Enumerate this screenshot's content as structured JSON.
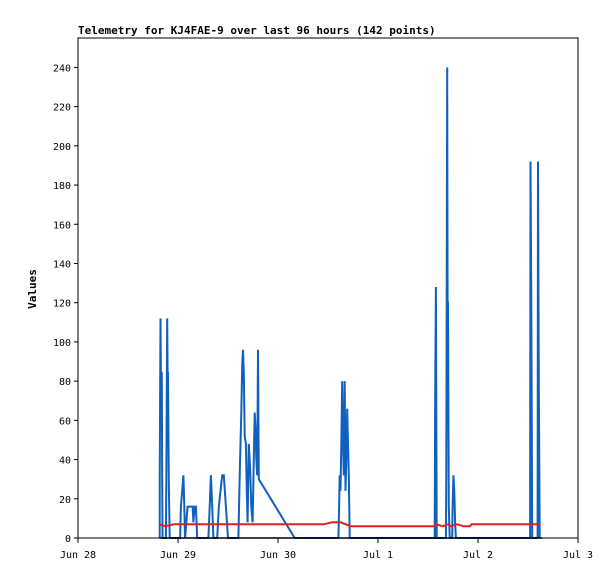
{
  "chart_data": {
    "type": "line",
    "title": "Telemetry for KJ4FAE-9 over last 96 hours (142 points)",
    "xlabel": "",
    "ylabel": "Values",
    "x_unit": "hours since Jun 28 00:00",
    "xlim": [
      0,
      120
    ],
    "ylim": [
      0,
      255
    ],
    "x_ticks": [
      {
        "value": 0,
        "label": "Jun 28"
      },
      {
        "value": 24,
        "label": "Jun 29"
      },
      {
        "value": 48,
        "label": "Jun 30"
      },
      {
        "value": 72,
        "label": "Jul 1"
      },
      {
        "value": 96,
        "label": "Jul 2"
      },
      {
        "value": 120,
        "label": "Jul 3"
      }
    ],
    "y_ticks": [
      0,
      20,
      40,
      60,
      80,
      100,
      120,
      140,
      160,
      180,
      200,
      220,
      240
    ],
    "grid": false,
    "legend": "none",
    "series": [
      {
        "color": "#1060c0",
        "points": [
          [
            19.6,
            0
          ],
          [
            19.6,
            28
          ],
          [
            19.8,
            112
          ],
          [
            19.9,
            84
          ],
          [
            20.1,
            84
          ],
          [
            20.2,
            28
          ],
          [
            20.3,
            0
          ],
          [
            21.1,
            0
          ],
          [
            21.2,
            28
          ],
          [
            21.4,
            112
          ],
          [
            21.5,
            84
          ],
          [
            21.6,
            84
          ],
          [
            21.8,
            28
          ],
          [
            22.0,
            0
          ],
          [
            24.5,
            0
          ],
          [
            24.7,
            16
          ],
          [
            25.0,
            24
          ],
          [
            25.3,
            32
          ],
          [
            25.5,
            16
          ],
          [
            25.7,
            0
          ],
          [
            26.0,
            8
          ],
          [
            26.3,
            16
          ],
          [
            27.5,
            16
          ],
          [
            27.7,
            8
          ],
          [
            28.0,
            16
          ],
          [
            28.3,
            16
          ],
          [
            28.6,
            0
          ],
          [
            31.3,
            0
          ],
          [
            31.6,
            16
          ],
          [
            31.9,
            32
          ],
          [
            32.2,
            16
          ],
          [
            32.5,
            0
          ],
          [
            33.4,
            0
          ],
          [
            33.8,
            16
          ],
          [
            34.2,
            24
          ],
          [
            34.6,
            32
          ],
          [
            35.0,
            32
          ],
          [
            35.5,
            16
          ],
          [
            36.0,
            0
          ],
          [
            38.5,
            0
          ],
          [
            38.8,
            32
          ],
          [
            39.2,
            64
          ],
          [
            39.4,
            88
          ],
          [
            39.6,
            96
          ],
          [
            39.8,
            84
          ],
          [
            40.0,
            52
          ],
          [
            40.3,
            48
          ],
          [
            40.5,
            24
          ],
          [
            40.7,
            8
          ],
          [
            41.0,
            48
          ],
          [
            41.3,
            36
          ],
          [
            41.6,
            16
          ],
          [
            41.9,
            8
          ],
          [
            42.2,
            40
          ],
          [
            42.4,
            64
          ],
          [
            42.6,
            56
          ],
          [
            42.8,
            40
          ],
          [
            43.0,
            32
          ],
          [
            43.2,
            96
          ],
          [
            43.4,
            30
          ],
          [
            52.0,
            0
          ],
          [
            62.5,
            0
          ],
          [
            62.6,
            8
          ],
          [
            62.8,
            32
          ],
          [
            63.0,
            24
          ],
          [
            63.2,
            48
          ],
          [
            63.4,
            80
          ],
          [
            63.6,
            48
          ],
          [
            63.8,
            32
          ],
          [
            64.0,
            80
          ],
          [
            64.2,
            24
          ],
          [
            64.4,
            40
          ],
          [
            64.6,
            66
          ],
          [
            64.8,
            48
          ],
          [
            65.0,
            32
          ],
          [
            65.2,
            0
          ],
          [
            85.6,
            0
          ],
          [
            85.7,
            64
          ],
          [
            85.9,
            128
          ],
          [
            86.0,
            64
          ],
          [
            86.1,
            0
          ],
          [
            88.3,
            0
          ],
          [
            88.4,
            32
          ],
          [
            88.6,
            240
          ],
          [
            88.7,
            120
          ],
          [
            88.8,
            120
          ],
          [
            88.9,
            64
          ],
          [
            89.0,
            16
          ],
          [
            89.2,
            0
          ],
          [
            89.8,
            0
          ],
          [
            89.9,
            16
          ],
          [
            90.1,
            32
          ],
          [
            90.3,
            24
          ],
          [
            90.5,
            8
          ],
          [
            90.7,
            0
          ],
          [
            108.5,
            0
          ],
          [
            108.6,
            192
          ],
          [
            108.8,
            120
          ],
          [
            109.0,
            0
          ],
          [
            110.3,
            0
          ],
          [
            110.4,
            192
          ],
          [
            110.6,
            80
          ],
          [
            110.8,
            0
          ]
        ]
      },
      {
        "color": "#e02020",
        "points": [
          [
            19.5,
            7
          ],
          [
            21.0,
            6
          ],
          [
            23.0,
            7
          ],
          [
            30.0,
            7
          ],
          [
            34.0,
            7
          ],
          [
            40.0,
            7
          ],
          [
            44.0,
            7
          ],
          [
            50.0,
            7
          ],
          [
            56.0,
            7
          ],
          [
            59.0,
            7
          ],
          [
            61.0,
            8
          ],
          [
            63.0,
            8
          ],
          [
            65.5,
            6
          ],
          [
            70.0,
            6
          ],
          [
            76.0,
            6
          ],
          [
            82.0,
            6
          ],
          [
            85.5,
            6
          ],
          [
            86.0,
            7
          ],
          [
            87.5,
            6
          ],
          [
            88.8,
            7
          ],
          [
            89.5,
            6
          ],
          [
            91.0,
            7
          ],
          [
            92.5,
            6
          ],
          [
            94.0,
            6
          ],
          [
            94.5,
            7
          ],
          [
            100.0,
            7
          ],
          [
            106.0,
            7
          ],
          [
            111.0,
            7
          ]
        ]
      },
      {
        "color": "#000000",
        "points": [
          [
            19.5,
            0
          ],
          [
            111.5,
            0
          ]
        ]
      }
    ]
  }
}
